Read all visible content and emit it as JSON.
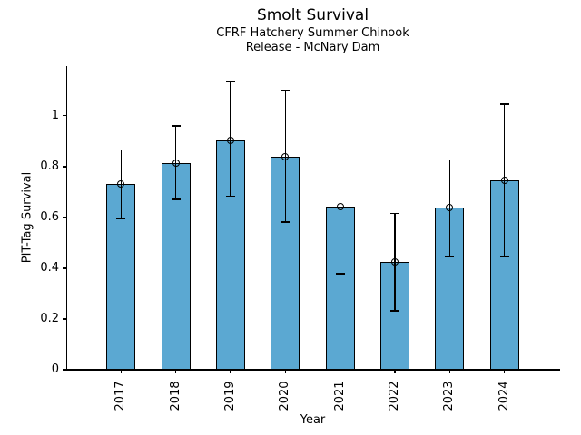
{
  "chart_data": {
    "type": "bar",
    "title": "Smolt Survival",
    "subtitle_lines": [
      "CFRF Hatchery Summer Chinook",
      "Release - McNary Dam"
    ],
    "xlabel": "Year",
    "ylabel": "PIT-Tag Survival",
    "categories": [
      "2017",
      "2018",
      "2019",
      "2020",
      "2021",
      "2022",
      "2023",
      "2024"
    ],
    "series": [
      {
        "name": "PIT-Tag Survival",
        "values": [
          0.732,
          0.813,
          0.905,
          0.84,
          0.642,
          0.424,
          0.638,
          0.745
        ],
        "error_low": [
          0.595,
          0.671,
          0.683,
          0.582,
          0.378,
          0.233,
          0.445,
          0.446
        ],
        "error_high": [
          0.866,
          0.96,
          1.135,
          1.102,
          0.905,
          0.616,
          0.826,
          1.046
        ]
      }
    ],
    "yticks": {
      "values": [
        0,
        0.2,
        0.4,
        0.6,
        0.8,
        1
      ],
      "labels": [
        "0",
        "0.2",
        "0.4",
        "0.6",
        "0.8",
        "1"
      ]
    },
    "ylim": [
      0,
      1.196
    ],
    "grid": false,
    "legend": "none",
    "marker": "open-circle",
    "colors": {
      "bar_fill": "#5BA8D2",
      "bar_edge": "#000000",
      "error_bar": "#000000",
      "background": "#FFFFFF",
      "text": "#000000"
    }
  }
}
